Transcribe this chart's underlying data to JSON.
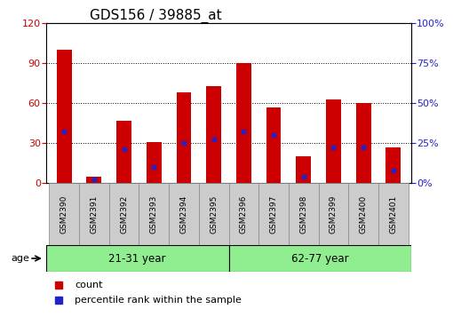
{
  "title": "GDS156 / 39885_at",
  "samples": [
    "GSM2390",
    "GSM2391",
    "GSM2392",
    "GSM2393",
    "GSM2394",
    "GSM2395",
    "GSM2396",
    "GSM2397",
    "GSM2398",
    "GSM2399",
    "GSM2400",
    "GSM2401"
  ],
  "counts": [
    100,
    5,
    47,
    31,
    68,
    73,
    90,
    57,
    20,
    63,
    60,
    27
  ],
  "percentiles": [
    32,
    2,
    21,
    10,
    25,
    27,
    32,
    30,
    4,
    22,
    22,
    8
  ],
  "ylim_left": [
    0,
    120
  ],
  "ylim_right": [
    0,
    100
  ],
  "yticks_left": [
    0,
    30,
    60,
    90,
    120
  ],
  "yticks_right": [
    0,
    25,
    50,
    75,
    100
  ],
  "bar_color": "#CC0000",
  "dot_color": "#2222CC",
  "group1_label": "21-31 year",
  "group2_label": "62-77 year",
  "group1_count": 6,
  "group2_count": 6,
  "age_label": "age",
  "legend_count": "count",
  "legend_percentile": "percentile rank within the sample",
  "group_bg_color": "#90EE90",
  "title_fontsize": 11,
  "axis_label_color_left": "#CC0000",
  "axis_label_color_right": "#2222CC",
  "right_axis_suffix": "%",
  "bar_width": 0.5,
  "xlim": [
    -0.6,
    11.6
  ]
}
